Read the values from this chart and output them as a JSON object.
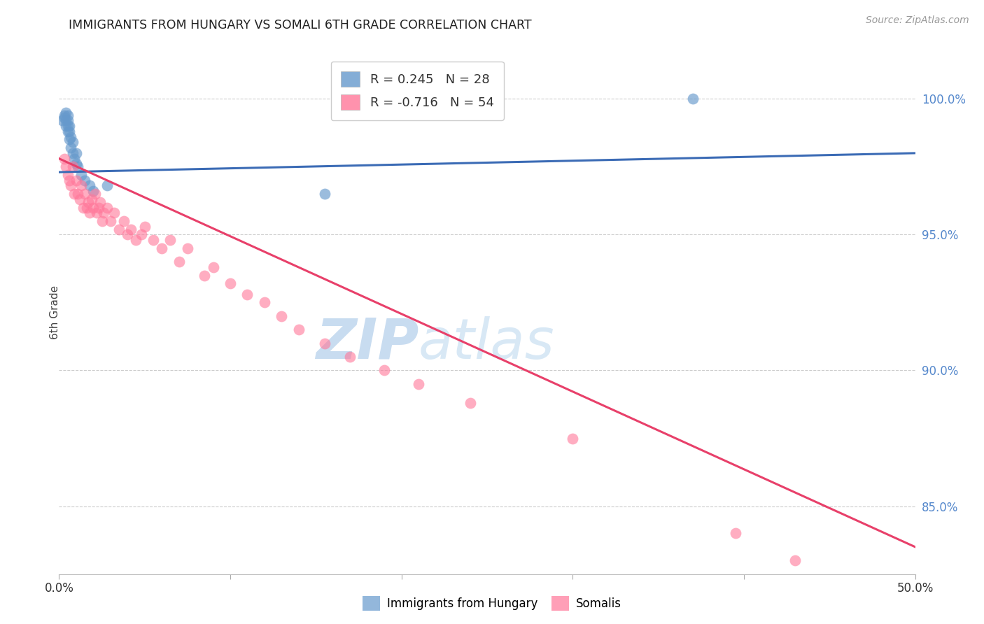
{
  "title": "IMMIGRANTS FROM HUNGARY VS SOMALI 6TH GRADE CORRELATION CHART",
  "source": "Source: ZipAtlas.com",
  "ylabel": "6th Grade",
  "ytick_labels": [
    "100.0%",
    "95.0%",
    "90.0%",
    "85.0%"
  ],
  "ytick_values": [
    1.0,
    0.95,
    0.9,
    0.85
  ],
  "xrange": [
    0.0,
    0.5
  ],
  "yrange": [
    0.825,
    1.018
  ],
  "legend_r_hungary": "0.245",
  "legend_n_hungary": "28",
  "legend_r_somali": "-0.716",
  "legend_n_somali": "54",
  "hungary_color": "#6699CC",
  "somali_color": "#FF7799",
  "hungary_line_color": "#3B6BB5",
  "somali_line_color": "#E8406A",
  "watermark_zip": "ZIP",
  "watermark_atlas": "atlas",
  "watermark_color": "#C8DCF0",
  "hungary_x": [
    0.002,
    0.003,
    0.003,
    0.004,
    0.004,
    0.004,
    0.005,
    0.005,
    0.005,
    0.005,
    0.006,
    0.006,
    0.006,
    0.007,
    0.007,
    0.008,
    0.008,
    0.009,
    0.01,
    0.01,
    0.011,
    0.013,
    0.015,
    0.018,
    0.02,
    0.028,
    0.155,
    0.37
  ],
  "hungary_y": [
    0.992,
    0.993,
    0.994,
    0.99,
    0.992,
    0.995,
    0.988,
    0.99,
    0.992,
    0.994,
    0.985,
    0.988,
    0.99,
    0.982,
    0.986,
    0.98,
    0.984,
    0.978,
    0.976,
    0.98,
    0.975,
    0.972,
    0.97,
    0.968,
    0.966,
    0.968,
    0.965,
    1.0
  ],
  "somali_x": [
    0.003,
    0.004,
    0.005,
    0.006,
    0.007,
    0.008,
    0.009,
    0.01,
    0.011,
    0.012,
    0.013,
    0.014,
    0.015,
    0.016,
    0.017,
    0.018,
    0.019,
    0.02,
    0.021,
    0.022,
    0.023,
    0.024,
    0.025,
    0.026,
    0.028,
    0.03,
    0.032,
    0.035,
    0.038,
    0.04,
    0.042,
    0.045,
    0.048,
    0.05,
    0.055,
    0.06,
    0.065,
    0.07,
    0.075,
    0.085,
    0.09,
    0.1,
    0.11,
    0.12,
    0.13,
    0.14,
    0.155,
    0.17,
    0.19,
    0.21,
    0.24,
    0.3,
    0.395,
    0.43
  ],
  "somali_y": [
    0.978,
    0.975,
    0.972,
    0.97,
    0.968,
    0.975,
    0.965,
    0.97,
    0.965,
    0.963,
    0.968,
    0.96,
    0.965,
    0.96,
    0.962,
    0.958,
    0.963,
    0.96,
    0.965,
    0.958,
    0.96,
    0.962,
    0.955,
    0.958,
    0.96,
    0.955,
    0.958,
    0.952,
    0.955,
    0.95,
    0.952,
    0.948,
    0.95,
    0.953,
    0.948,
    0.945,
    0.948,
    0.94,
    0.945,
    0.935,
    0.938,
    0.932,
    0.928,
    0.925,
    0.92,
    0.915,
    0.91,
    0.905,
    0.9,
    0.895,
    0.888,
    0.875,
    0.84,
    0.83
  ]
}
